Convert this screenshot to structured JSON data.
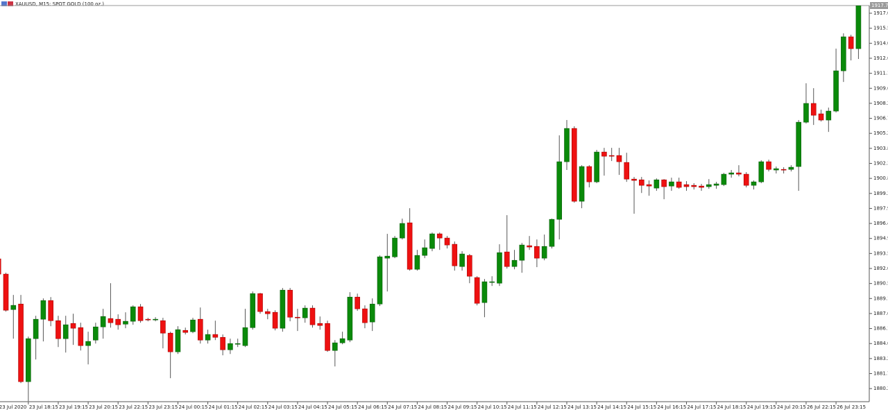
{
  "chart_data": {
    "type": "candlestick",
    "title": "XAUUSD, M15:  SPOT GOLD (100 oz.)",
    "last_price": 1917.78,
    "up_color": "#0a8a0a",
    "down_color": "#ee1111",
    "wick_color": "#555555",
    "ylim": [
      1879.0,
      1917.78
    ],
    "yticks": [
      1917.03,
      1915.56,
      1914.09,
      1912.62,
      1911.15,
      1909.68,
      1908.21,
      1906.74,
      1905.27,
      {
        "value": 1903.8,
        "label": "1903.80"
      },
      1902.33,
      1900.86,
      1899.39,
      1897.92,
      1896.45,
      1894.98,
      1893.51,
      1892.04,
      1890.57,
      {
        "value": 1889.1,
        "label": "1889.10"
      },
      1887.63,
      1886.16,
      1884.69,
      1883.22,
      1881.75,
      1880.28
    ],
    "categories": [
      "23 Jul 2020",
      null,
      null,
      null,
      "23 Jul 18:15",
      null,
      null,
      null,
      "23 Jul 19:15",
      null,
      null,
      null,
      "23 Jul 20:15",
      null,
      null,
      null,
      "23 Jul 22:15",
      null,
      null,
      null,
      "23 Jul 23:15",
      null,
      null,
      null,
      "24 Jul 00:15",
      null,
      null,
      null,
      "24 Jul 01:15",
      null,
      null,
      null,
      "24 Jul 02:15",
      null,
      null,
      null,
      "24 Jul 03:15",
      null,
      null,
      null,
      "24 Jul 04:15",
      null,
      null,
      null,
      "24 Jul 05:15",
      null,
      null,
      null,
      "24 Jul 06:15",
      null,
      null,
      null,
      "24 Jul 07:15",
      null,
      null,
      null,
      "24 Jul 08:15",
      null,
      null,
      null,
      "24 Jul 09:15",
      null,
      null,
      null,
      "24 Jul 10:15",
      null,
      null,
      null,
      "24 Jul 11:15",
      null,
      null,
      null,
      "24 Jul 12:15",
      null,
      null,
      null,
      "24 Jul 13:15",
      null,
      null,
      null,
      "24 Jul 14:15",
      null,
      null,
      null,
      "24 Jul 15:15",
      null,
      null,
      null,
      "24 Jul 16:15",
      null,
      null,
      null,
      "24 Jul 17:15",
      null,
      null,
      null,
      "24 Jul 18:15",
      null,
      null,
      null,
      "24 Jul 19:15",
      null,
      null,
      null,
      "24 Jul 20:15",
      null,
      null,
      null,
      "26 Jul 22:15",
      null,
      null,
      null,
      "26 Jul 23:15",
      null,
      null,
      null
    ],
    "open": [
      1892.98,
      1891.49,
      1888.02,
      1888.56,
      1880.96,
      1885.17,
      1887.07,
      1888.9,
      1886.93,
      1885.17,
      1886.66,
      1886.25,
      1884.49,
      1885.03,
      1886.32,
      1887.14,
      1887.07,
      1886.59,
      1886.87,
      1888.29,
      1887.07,
      1887.07,
      1886.93,
      1885.71,
      1883.88,
      1885.98,
      1885.85,
      1887.07,
      1885.03,
      1885.58,
      1885.3,
      1884.08,
      1884.62,
      1884.49,
      1886.25,
      1889.58,
      1887.82,
      1887.75,
      1886.19,
      1889.92,
      1887.27,
      1887.21,
      1888.16,
      1886.66,
      1886.66,
      1884.01,
      1884.76,
      1885.03,
      1889.24,
      1888.09,
      1886.8,
      1888.56,
      1893.05,
      1893.18,
      1895.02,
      1896.51,
      1891.96,
      1893.32,
      1894.0,
      1895.43,
      1895.02,
      1894.41,
      1892.23,
      1893.32,
      1891.15,
      1888.7,
      1890.74,
      1890.6,
      1893.66,
      1892.23,
      1892.84,
      1894.27,
      1894.2,
      1893.05,
      1894.2,
      1896.85,
      1902.49,
      1905.75,
      1898.62,
      1902.02,
      1900.52,
      1903.44,
      1903.1,
      1903.1,
      1902.42,
      1900.79,
      1900.72,
      1900.25,
      1899.91,
      1900.72,
      1900.11,
      1900.52,
      1900.25,
      1900.18,
      1900.11,
      1900.05,
      1900.18,
      1900.25,
      1901.27,
      1901.4,
      1901.27,
      1900.18,
      1900.52,
      1902.49,
      1901.68,
      1901.74,
      1901.74,
      1902.02,
      1906.36,
      1908.2,
      1907.18,
      1906.57,
      1907.45,
      1911.39,
      1914.72,
      1913.56
    ],
    "high": [
      1893.18,
      1891.62,
      1889.45,
      1889.45,
      1885.37,
      1887.41,
      1889.11,
      1889.24,
      1887.41,
      1887.41,
      1887.61,
      1886.73,
      1885.85,
      1886.73,
      1888.09,
      1890.6,
      1887.55,
      1887.75,
      1888.43,
      1888.56,
      1887.21,
      1887.27,
      1887.21,
      1885.85,
      1886.39,
      1886.25,
      1887.21,
      1888.22,
      1886.05,
      1886.93,
      1885.58,
      1885.17,
      1885.17,
      1888.09,
      1889.79,
      1889.65,
      1888.09,
      1887.95,
      1890.13,
      1890.13,
      1888.09,
      1888.43,
      1888.43,
      1887.34,
      1886.93,
      1885.03,
      1885.85,
      1889.72,
      1889.58,
      1888.43,
      1889.11,
      1893.32,
      1895.43,
      1895.22,
      1896.92,
      1897.94,
      1893.86,
      1894.88,
      1895.56,
      1895.56,
      1895.22,
      1894.68,
      1893.73,
      1893.46,
      1891.28,
      1891.01,
      1891.28,
      1894.41,
      1897.26,
      1893.86,
      1894.54,
      1895.22,
      1894.88,
      1895.36,
      1896.92,
      1905.07,
      1906.57,
      1905.96,
      1902.15,
      1902.15,
      1903.65,
      1903.85,
      1903.85,
      1903.85,
      1903.37,
      1901.0,
      1901.0,
      1900.66,
      1900.86,
      1900.79,
      1900.93,
      1900.93,
      1900.59,
      1900.39,
      1900.32,
      1900.79,
      1900.52,
      1901.4,
      1901.68,
      1902.15,
      1901.47,
      1900.66,
      1902.63,
      1902.69,
      1902.02,
      1901.95,
      1902.15,
      1906.57,
      1910.17,
      1909.69,
      1907.59,
      1907.79,
      1913.56,
      1915.06,
      1914.92,
      1917.78
    ],
    "low": [
      1891.35,
      1887.82,
      1885.17,
      1880.82,
      1879.05,
      1883.13,
      1884.9,
      1886.39,
      1884.35,
      1883.81,
      1884.56,
      1884.01,
      1882.65,
      1884.69,
      1885.17,
      1886.25,
      1886.05,
      1886.19,
      1886.53,
      1886.73,
      1886.87,
      1886.87,
      1884.22,
      1881.3,
      1883.67,
      1885.58,
      1885.71,
      1884.69,
      1884.69,
      1885.03,
      1883.54,
      1883.67,
      1884.35,
      1884.35,
      1886.05,
      1887.61,
      1887.07,
      1885.98,
      1885.85,
      1886.87,
      1885.92,
      1886.73,
      1886.25,
      1886.05,
      1883.88,
      1882.45,
      1884.62,
      1884.83,
      1887.89,
      1886.19,
      1885.92,
      1888.36,
      1889.79,
      1893.05,
      1894.88,
      1891.83,
      1891.83,
      1893.05,
      1893.73,
      1893.86,
      1894.0,
      1891.83,
      1891.83,
      1890.6,
      1888.43,
      1887.27,
      1890.33,
      1890.33,
      1892.03,
      1891.96,
      1891.62,
      1893.86,
      1892.17,
      1892.84,
      1894.0,
      1894.88,
      1901.68,
      1898.48,
      1897.94,
      1899.98,
      1900.39,
      1901.13,
      1902.56,
      1901.2,
      1900.52,
      1897.4,
      1899.43,
      1899.16,
      1899.64,
      1898.82,
      1899.64,
      1899.84,
      1899.64,
      1899.77,
      1899.64,
      1899.84,
      1899.84,
      1900.11,
      1900.93,
      1901.06,
      1899.98,
      1899.77,
      1900.39,
      1901.54,
      1901.34,
      1901.34,
      1901.54,
      1899.64,
      1906.23,
      1906.09,
      1906.43,
      1905.41,
      1907.31,
      1910.3,
      1912.41,
      1912.55
    ],
    "close": [
      1891.49,
      1887.95,
      1888.43,
      1880.96,
      1885.17,
      1887.07,
      1888.9,
      1886.93,
      1885.17,
      1886.53,
      1886.19,
      1884.49,
      1884.9,
      1886.32,
      1887.34,
      1886.73,
      1886.53,
      1886.87,
      1888.29,
      1886.93,
      1887.0,
      1887.07,
      1885.71,
      1883.88,
      1886.05,
      1885.78,
      1887.0,
      1885.03,
      1885.58,
      1885.3,
      1884.08,
      1884.69,
      1884.69,
      1886.25,
      1889.58,
      1887.82,
      1887.61,
      1886.19,
      1889.92,
      1887.27,
      1887.21,
      1888.16,
      1886.53,
      1886.46,
      1884.01,
      1884.76,
      1885.17,
      1889.24,
      1888.09,
      1886.73,
      1888.56,
      1893.18,
      1893.25,
      1895.02,
      1896.45,
      1891.96,
      1893.32,
      1894.07,
      1895.43,
      1895.02,
      1894.34,
      1892.3,
      1893.46,
      1891.28,
      1888.63,
      1890.74,
      1890.74,
      1893.59,
      1892.23,
      1892.84,
      1894.34,
      1894.14,
      1893.05,
      1894.2,
      1896.85,
      1902.49,
      1905.75,
      1898.62,
      1902.02,
      1900.52,
      1903.44,
      1903.03,
      1903.03,
      1902.49,
      1900.79,
      1900.66,
      1900.18,
      1900.11,
      1900.72,
      1900.05,
      1900.52,
      1899.98,
      1900.05,
      1900.05,
      1899.98,
      1900.25,
      1900.32,
      1901.27,
      1901.4,
      1901.27,
      1900.18,
      1900.52,
      1902.49,
      1901.74,
      1901.81,
      1901.68,
      1901.95,
      1906.36,
      1908.2,
      1907.04,
      1906.57,
      1907.45,
      1911.39,
      1914.72,
      1913.56,
      1917.78
    ]
  }
}
